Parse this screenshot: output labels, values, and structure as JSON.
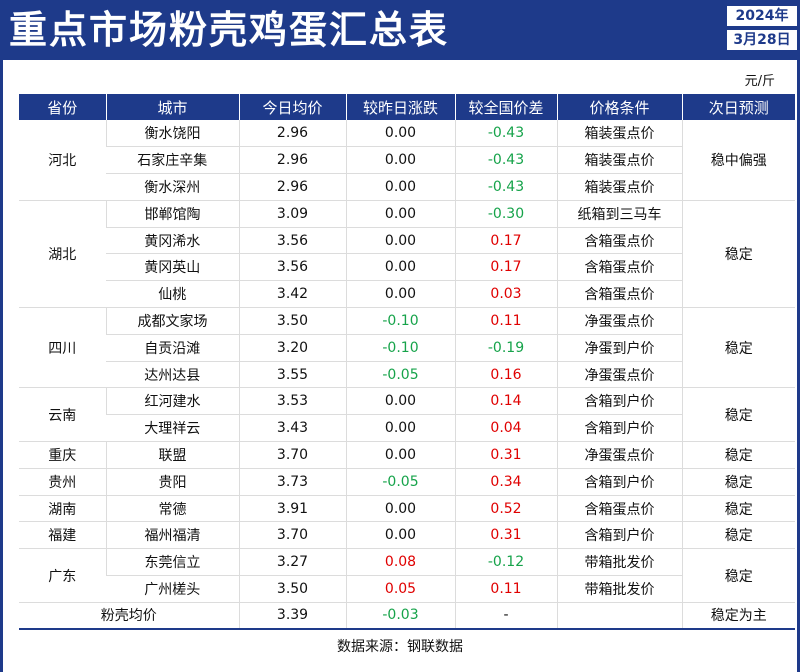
{
  "header": {
    "title": "重点市场粉壳鸡蛋汇总表",
    "year": "2024年",
    "date": "3月28日"
  },
  "unit": "元/斤",
  "columns": [
    "省份",
    "城市",
    "今日均价",
    "较昨日涨跌",
    "较全国价差",
    "价格条件",
    "次日预测"
  ],
  "groups": [
    {
      "province": "河北",
      "forecast": "稳中偏强",
      "rows": [
        {
          "city": "衡水饶阳",
          "price": "2.96",
          "change": "0.00",
          "diff": "-0.43",
          "cond": "箱装蛋点价"
        },
        {
          "city": "石家庄辛集",
          "price": "2.96",
          "change": "0.00",
          "diff": "-0.43",
          "cond": "箱装蛋点价"
        },
        {
          "city": "衡水深州",
          "price": "2.96",
          "change": "0.00",
          "diff": "-0.43",
          "cond": "箱装蛋点价"
        }
      ]
    },
    {
      "province": "湖北",
      "forecast": "稳定",
      "rows": [
        {
          "city": "邯郸馆陶",
          "price": "3.09",
          "change": "0.00",
          "diff": "-0.30",
          "cond": "纸箱到三马车"
        },
        {
          "city": "黄冈浠水",
          "price": "3.56",
          "change": "0.00",
          "diff": "0.17",
          "cond": "含箱蛋点价"
        },
        {
          "city": "黄冈英山",
          "price": "3.56",
          "change": "0.00",
          "diff": "0.17",
          "cond": "含箱蛋点价"
        },
        {
          "city": "仙桃",
          "price": "3.42",
          "change": "0.00",
          "diff": "0.03",
          "cond": "含箱蛋点价"
        }
      ]
    },
    {
      "province": "四川",
      "forecast": "稳定",
      "rows": [
        {
          "city": "成都文家场",
          "price": "3.50",
          "change": "-0.10",
          "diff": "0.11",
          "cond": "净蛋蛋点价"
        },
        {
          "city": "自贡沿滩",
          "price": "3.20",
          "change": "-0.10",
          "diff": "-0.19",
          "cond": "净蛋到户价"
        },
        {
          "city": "达州达县",
          "price": "3.55",
          "change": "-0.05",
          "diff": "0.16",
          "cond": "净蛋蛋点价"
        }
      ]
    },
    {
      "province": "云南",
      "forecast": "稳定",
      "rows": [
        {
          "city": "红河建水",
          "price": "3.53",
          "change": "0.00",
          "diff": "0.14",
          "cond": "含箱到户价"
        },
        {
          "city": "大理祥云",
          "price": "3.43",
          "change": "0.00",
          "diff": "0.04",
          "cond": "含箱到户价"
        }
      ]
    },
    {
      "province": "重庆",
      "forecast": "稳定",
      "rows": [
        {
          "city": "联盟",
          "price": "3.70",
          "change": "0.00",
          "diff": "0.31",
          "cond": "净蛋蛋点价"
        }
      ]
    },
    {
      "province": "贵州",
      "forecast": "稳定",
      "rows": [
        {
          "city": "贵阳",
          "price": "3.73",
          "change": "-0.05",
          "diff": "0.34",
          "cond": "含箱到户价"
        }
      ]
    },
    {
      "province": "湖南",
      "forecast": "稳定",
      "rows": [
        {
          "city": "常德",
          "price": "3.91",
          "change": "0.00",
          "diff": "0.52",
          "cond": "含箱蛋点价"
        }
      ]
    },
    {
      "province": "福建",
      "forecast": "稳定",
      "rows": [
        {
          "city": "福州福清",
          "price": "3.70",
          "change": "0.00",
          "diff": "0.31",
          "cond": "含箱到户价"
        }
      ]
    },
    {
      "province": "广东",
      "forecast": "稳定",
      "rows": [
        {
          "city": "东莞信立",
          "price": "3.27",
          "change": "0.08",
          "diff": "-0.12",
          "cond": "带箱批发价"
        },
        {
          "city": "广州槎头",
          "price": "3.50",
          "change": "0.05",
          "diff": "0.11",
          "cond": "带箱批发价"
        }
      ]
    }
  ],
  "summary": {
    "label": "粉壳均价",
    "price": "3.39",
    "change": "-0.03",
    "diff": "-",
    "cond": "",
    "forecast": "稳定为主"
  },
  "source": "数据来源：钢联数据",
  "colors": {
    "header": "#1e3a8a",
    "up": "#e00000",
    "down": "#16a34a"
  }
}
